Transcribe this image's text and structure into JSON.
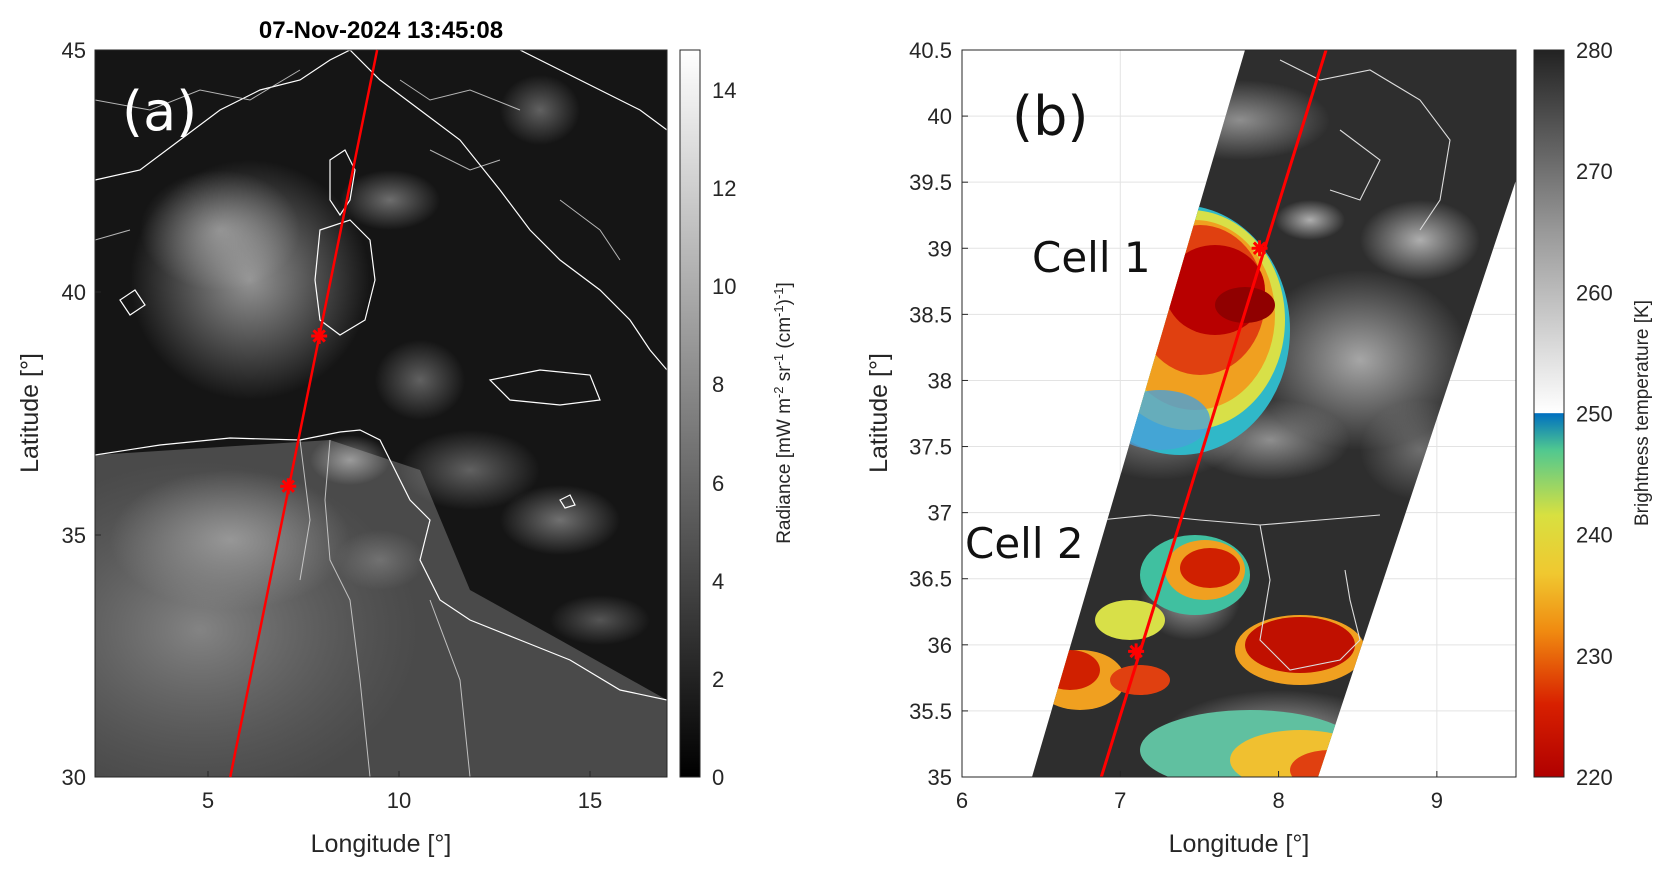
{
  "title": "07-Nov-2024 13:45:08",
  "panel_a": {
    "label": "(a)",
    "xlabel": "Longitude [°]",
    "ylabel": "Latitude [°]",
    "xticks": [
      "5",
      "10",
      "15"
    ],
    "yticks": [
      "45",
      "40",
      "35",
      "30"
    ],
    "xlim": [
      2.2,
      17
    ],
    "ylim": [
      30,
      45
    ],
    "colorbar": {
      "label_pre": "Radiance [mW m",
      "label_exp1": "-2",
      "label_mid1": " sr",
      "label_exp2": "-1",
      "label_mid2": " (cm",
      "label_exp3": "-1",
      "label_mid3": ")",
      "label_exp4": "-1",
      "label_end": "]",
      "ticks": [
        "0",
        "2",
        "4",
        "6",
        "8",
        "10",
        "12",
        "14"
      ],
      "range": [
        0,
        14.8
      ],
      "colormap": "gray"
    },
    "track": {
      "color": "#ff0000",
      "start": [
        5.7,
        30
      ],
      "end": [
        9.5,
        45
      ]
    },
    "markers": [
      [
        8.0,
        39.1
      ],
      [
        7.2,
        36.0
      ]
    ]
  },
  "panel_b": {
    "label": "(b)",
    "xlabel": "Longitude [°]",
    "ylabel": "Latitude [°]",
    "xticks": [
      "6",
      "7",
      "8",
      "9"
    ],
    "yticks": [
      "40.5",
      "40",
      "39.5",
      "39",
      "38.5",
      "38",
      "37.5",
      "37",
      "36.5",
      "36",
      "35.5",
      "35"
    ],
    "xlim": [
      6,
      9.5
    ],
    "ylim": [
      35,
      40.5
    ],
    "grid": true,
    "annotations": [
      "Cell 1",
      "Cell 2"
    ],
    "colorbar": {
      "label": "Brightness temperature [K]",
      "ticks": [
        "220",
        "230",
        "240",
        "250",
        "260",
        "270",
        "280"
      ],
      "range": [
        220,
        280
      ],
      "colors": {
        "cold": "#b00000",
        "orange": "#f0a020",
        "yellow": "#e8e840",
        "green": "#40c080",
        "blue": "#0070c0",
        "light": "#f4f4f4",
        "dark": "#2a2a2a"
      }
    },
    "track": {
      "color": "#ff0000",
      "start": [
        6.88,
        35
      ],
      "end": [
        8.3,
        40.5
      ]
    },
    "markers": [
      [
        7.88,
        39.0
      ],
      [
        7.1,
        35.95
      ]
    ]
  }
}
